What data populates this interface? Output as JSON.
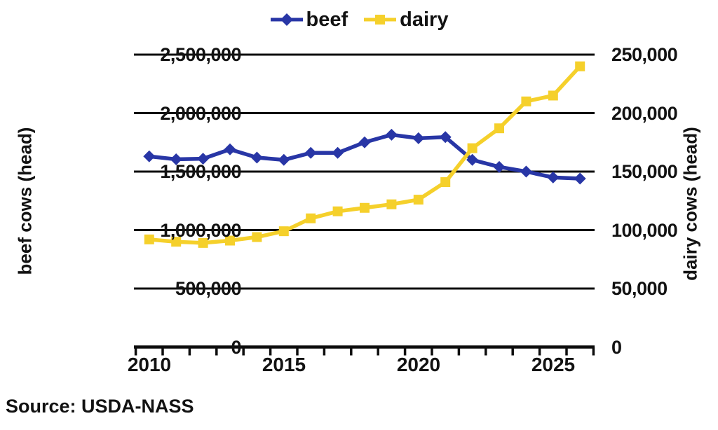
{
  "source": "Source: USDA-NASS",
  "colors": {
    "beef": "#2836a6",
    "dairy": "#f5d02b",
    "axis": "#0d0d0d"
  },
  "chart_data": {
    "type": "line",
    "x": [
      2010,
      2011,
      2012,
      2013,
      2014,
      2015,
      2016,
      2017,
      2018,
      2019,
      2020,
      2021,
      2022,
      2023,
      2024,
      2025,
      2026
    ],
    "series": [
      {
        "name": "beef",
        "axis": "left",
        "color": "#2836a6",
        "marker": "diamond",
        "values": [
          1630000,
          1605000,
          1610000,
          1690000,
          1620000,
          1600000,
          1660000,
          1660000,
          1750000,
          1815000,
          1785000,
          1795000,
          1600000,
          1540000,
          1500000,
          1450000,
          1440000
        ]
      },
      {
        "name": "dairy",
        "axis": "right",
        "color": "#f5d02b",
        "marker": "square",
        "values": [
          92000,
          90000,
          89000,
          91000,
          94000,
          99000,
          110000,
          116000,
          119000,
          122000,
          126000,
          141000,
          170000,
          187000,
          210000,
          215000,
          240000
        ]
      }
    ],
    "left_axis": {
      "label": "beef cows (head)",
      "range": [
        0,
        2500000
      ],
      "ticks": [
        "2,500,000",
        "2,000,000",
        "1,500,000",
        "1,000,000",
        "500,000",
        "0"
      ]
    },
    "right_axis": {
      "label": "dairy cows (head)",
      "range": [
        0,
        250000
      ],
      "ticks": [
        "250,000",
        "200,000",
        "150,000",
        "100,000",
        "50,000",
        "0"
      ]
    },
    "x_axis": {
      "range": [
        2010,
        2026
      ],
      "tick_labels": [
        "2010",
        "2015",
        "2020",
        "2025"
      ]
    },
    "grid": true,
    "legend_position": "top-center"
  }
}
